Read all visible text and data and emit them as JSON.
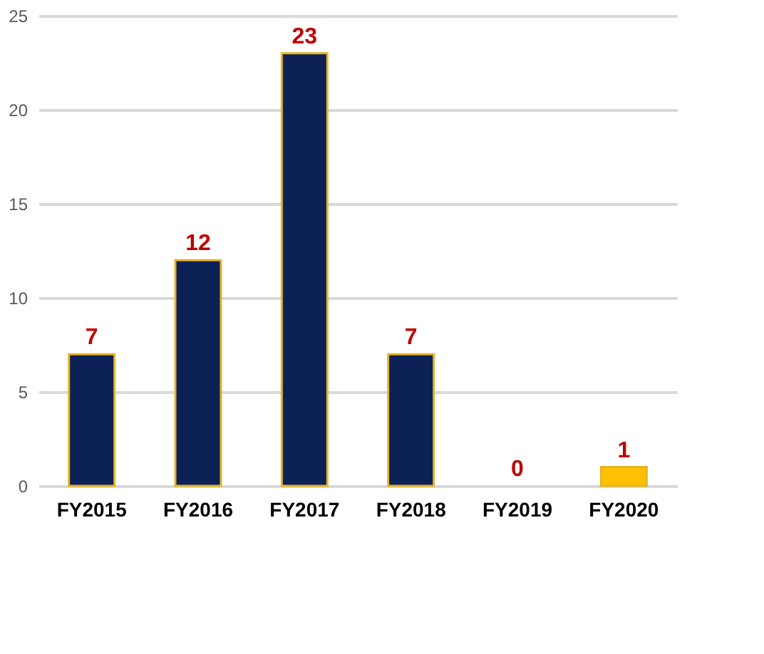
{
  "chart_data": {
    "type": "bar",
    "categories": [
      "FY2015",
      "FY2016",
      "FY2017",
      "FY2018",
      "FY2019",
      "FY2020"
    ],
    "values": [
      7,
      12,
      23,
      7,
      0,
      1
    ],
    "colors": [
      "#0c2257",
      "#0c2257",
      "#0c2257",
      "#0c2257",
      "#0c2257",
      "#ffc000"
    ],
    "ylim": [
      0,
      25
    ],
    "yticks": [
      0,
      5,
      10,
      15,
      20,
      25
    ],
    "grid": "y",
    "data_labels": true
  }
}
